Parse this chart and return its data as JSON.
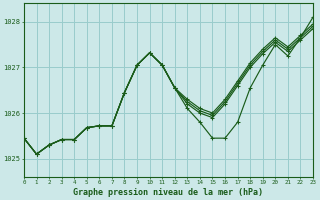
{
  "title": "Graphe pression niveau de la mer (hPa)",
  "background_color": "#cce8e8",
  "grid_color": "#99cccc",
  "line_color": "#1a5c1a",
  "x_min": 0,
  "x_max": 23,
  "y_min": 1024.6,
  "y_max": 1028.4,
  "yticks": [
    1025,
    1026,
    1027,
    1028
  ],
  "xtick_labels": [
    "0",
    "1",
    "2",
    "3",
    "4",
    "5",
    "6",
    "7",
    "8",
    "9",
    "10",
    "11",
    "12",
    "13",
    "14",
    "15",
    "16",
    "17",
    "18",
    "19",
    "20",
    "21",
    "22",
    "23"
  ],
  "xticks": [
    0,
    1,
    2,
    3,
    4,
    5,
    6,
    7,
    8,
    9,
    10,
    11,
    12,
    13,
    14,
    15,
    16,
    17,
    18,
    19,
    20,
    21,
    22,
    23
  ],
  "series": [
    [
      1025.45,
      1025.1,
      1025.3,
      1025.42,
      1025.42,
      1025.68,
      1025.72,
      1025.72,
      1026.45,
      1027.05,
      1027.32,
      1027.05,
      1026.55,
      1026.1,
      1025.8,
      1025.45,
      1025.45,
      1025.8,
      1026.55,
      1027.05,
      1027.5,
      1027.25,
      1027.65,
      1028.1
    ],
    [
      1025.45,
      1025.1,
      1025.3,
      1025.42,
      1025.42,
      1025.68,
      1025.72,
      1025.72,
      1026.45,
      1027.05,
      1027.32,
      1027.05,
      1026.55,
      1026.2,
      1026.0,
      1025.9,
      1026.2,
      1026.6,
      1027.0,
      1027.3,
      1027.55,
      1027.35,
      1027.6,
      1027.85
    ],
    [
      1025.45,
      1025.1,
      1025.3,
      1025.42,
      1025.42,
      1025.68,
      1025.72,
      1025.72,
      1026.45,
      1027.05,
      1027.32,
      1027.05,
      1026.55,
      1026.25,
      1026.05,
      1025.95,
      1026.25,
      1026.65,
      1027.05,
      1027.35,
      1027.6,
      1027.4,
      1027.65,
      1027.9
    ],
    [
      1025.45,
      1025.1,
      1025.3,
      1025.42,
      1025.42,
      1025.68,
      1025.72,
      1025.72,
      1026.45,
      1027.05,
      1027.32,
      1027.05,
      1026.55,
      1026.3,
      1026.1,
      1026.0,
      1026.3,
      1026.7,
      1027.1,
      1027.4,
      1027.65,
      1027.45,
      1027.7,
      1027.95
    ]
  ]
}
